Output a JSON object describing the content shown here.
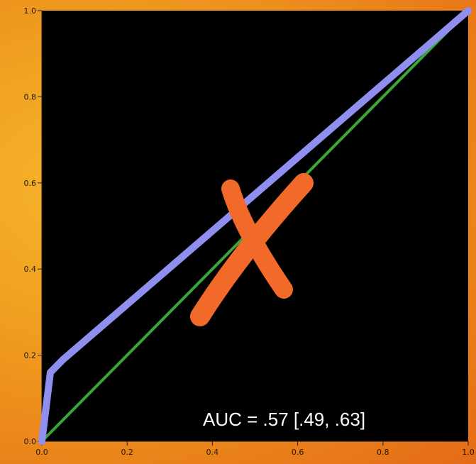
{
  "chart_data": {
    "type": "line",
    "title": "",
    "xlabel": "",
    "ylabel": "",
    "xlim": [
      0,
      1
    ],
    "ylim": [
      0,
      1
    ],
    "xticks": [
      "0.0",
      "0.2",
      "0.4",
      "0.6",
      "0.8",
      "1.0"
    ],
    "yticks": [
      "0.0",
      "0.2",
      "0.4",
      "0.6",
      "0.8",
      "1.0"
    ],
    "grid": false,
    "series": [
      {
        "color": "#8f8ff0",
        "x": [
          0.0,
          0.02,
          0.05,
          1.0
        ],
        "y": [
          0.0,
          0.16,
          0.19,
          1.0
        ]
      },
      {
        "color": "#3aa63a",
        "x": [
          0.0,
          1.0
        ],
        "y": [
          0.0,
          1.0
        ]
      }
    ],
    "annotation": "AUC = .57 [.49, .63]",
    "cross_mark": {
      "color": "#f26a2a",
      "icon": "x-cross-icon"
    }
  },
  "colors": {
    "plot_background": "#000000",
    "frame_background": "#f0a020"
  }
}
